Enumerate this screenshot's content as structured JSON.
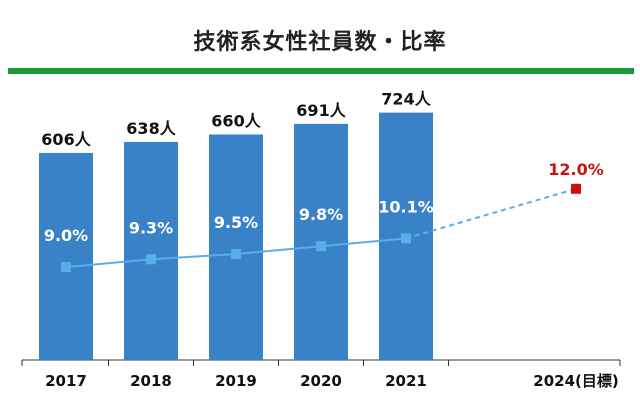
{
  "title": "技術系女性社員数・比率",
  "colors": {
    "rule": "#1a9a3a",
    "bar": "#3a82c8",
    "line": "#5aaee8",
    "target": "#cc1111",
    "axis": "#333333",
    "grid": "#bbbbbb"
  },
  "chart_data": {
    "type": "bar",
    "title": "技術系女性社員数・比率",
    "categories": [
      "2017",
      "2018",
      "2019",
      "2020",
      "2021",
      "2024(目標)"
    ],
    "series": [
      {
        "name": "技術系女性社員数",
        "unit": "人",
        "values": [
          606,
          638,
          660,
          691,
          724,
          null
        ],
        "labels": [
          "606人",
          "638人",
          "660人",
          "691人",
          "724人",
          ""
        ]
      },
      {
        "name": "比率",
        "type": "line",
        "unit": "%",
        "values": [
          9.0,
          9.3,
          9.5,
          9.8,
          10.1,
          12.0
        ],
        "labels": [
          "9.0%",
          "9.3%",
          "9.5%",
          "9.8%",
          "10.1%",
          "12.0%"
        ],
        "projected_from_index": 4
      }
    ],
    "xlabel": "",
    "ylabel": ""
  }
}
